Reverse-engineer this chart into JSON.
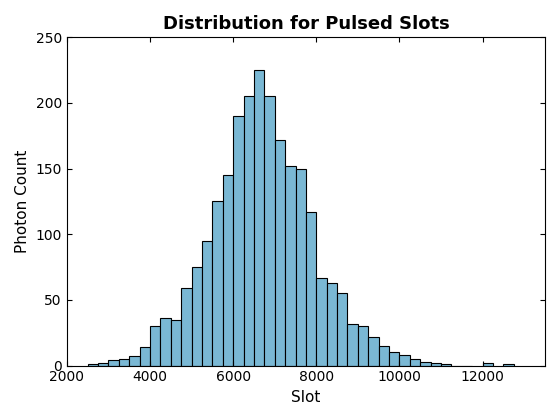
{
  "title": "Distribution for Pulsed Slots",
  "xlabel": "Slot",
  "ylabel": "Photon Count",
  "bar_color": "#7ab8d4",
  "edge_color": "#000000",
  "xlim": [
    2000,
    13500
  ],
  "ylim": [
    0,
    250
  ],
  "xticks": [
    2000,
    4000,
    6000,
    8000,
    10000,
    12000
  ],
  "yticks": [
    0,
    50,
    100,
    150,
    200,
    250
  ],
  "bin_left_edges": [
    2500,
    2750,
    3000,
    3250,
    3500,
    3750,
    4000,
    4250,
    4500,
    4750,
    5000,
    5250,
    5500,
    5750,
    6000,
    6250,
    6500,
    6750,
    7000,
    7250,
    7500,
    7750,
    8000,
    8250,
    8500,
    8750,
    9000,
    9250,
    9500,
    9750,
    10000,
    10250,
    10500,
    10750,
    11000,
    11250,
    11500,
    12000,
    12500
  ],
  "bin_heights": [
    1,
    2,
    4,
    5,
    7,
    14,
    30,
    36,
    35,
    59,
    75,
    95,
    125,
    145,
    190,
    205,
    225,
    205,
    172,
    152,
    150,
    117,
    67,
    63,
    55,
    32,
    30,
    22,
    15,
    10,
    8,
    5,
    3,
    2,
    1,
    0,
    0,
    2,
    1
  ],
  "bin_width": 250,
  "figsize": [
    5.6,
    4.2
  ],
  "dpi": 100,
  "title_fontsize": 13,
  "label_fontsize": 11
}
